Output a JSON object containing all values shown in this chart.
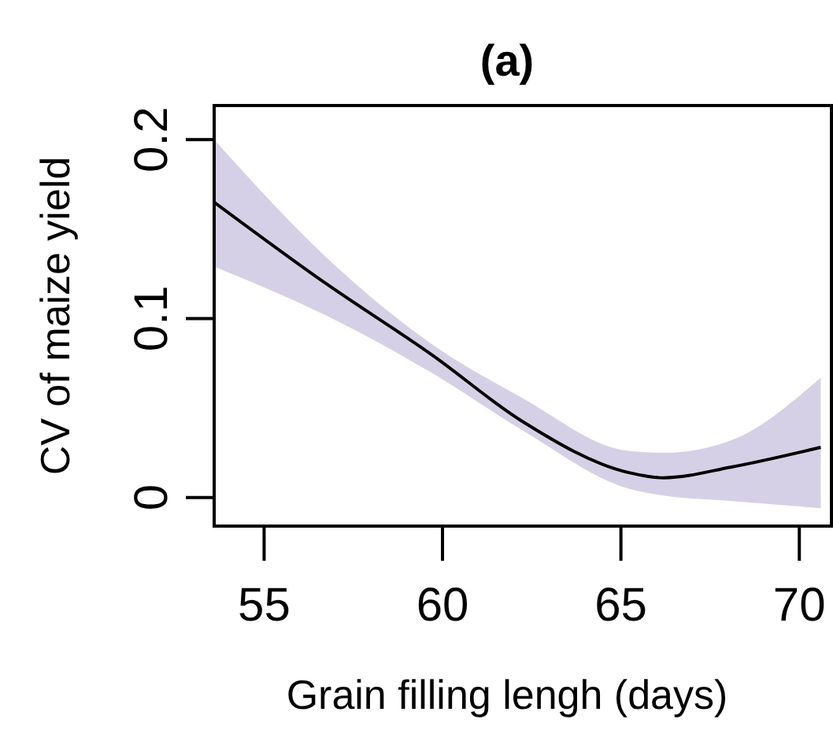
{
  "chart_data": {
    "type": "line",
    "title": "(a)",
    "xlabel": "Grain filling lengh (days)",
    "ylabel": "CV of maize yield",
    "xlim": [
      53.6,
      70.9
    ],
    "ylim": [
      -0.016,
      0.219
    ],
    "xticks": [
      55,
      60,
      65,
      70
    ],
    "yticks": [
      0,
      0.1,
      0.2
    ],
    "grid": false,
    "series": [
      {
        "color": "#000000",
        "x": [
          53.6,
          56.7,
          59.75,
          62.2,
          65.2,
          66.2,
          68.1,
          70.6
        ],
        "values": [
          0.165,
          0.12,
          0.079,
          0.043,
          0.014,
          0.011,
          0.017,
          0.028
        ],
        "lower": [
          0.129,
          0.102,
          0.069,
          0.038,
          0.005,
          0.001,
          -0.002,
          -0.006
        ],
        "upper": [
          0.2,
          0.135,
          0.085,
          0.056,
          0.026,
          0.025,
          0.032,
          0.067
        ]
      }
    ]
  }
}
